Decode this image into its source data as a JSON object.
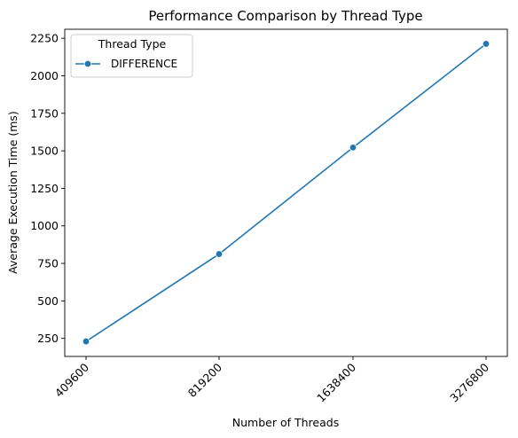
{
  "chart_data": {
    "type": "line",
    "title": "Performance Comparison by Thread Type",
    "xlabel": "Number of Threads",
    "ylabel": "Average Execution Time (ms)",
    "categories": [
      "409600",
      "819200",
      "1638400",
      "3276800"
    ],
    "ylim": [
      130,
      2310
    ],
    "yticks": [
      250,
      500,
      750,
      1000,
      1250,
      1500,
      1750,
      2000,
      2250
    ],
    "grid": false,
    "legend": {
      "title": "Thread Type",
      "position": "top-left"
    },
    "series": [
      {
        "name": "DIFFERENCE",
        "color": "#1f77b4",
        "marker": "circle",
        "values": [
          230,
          812,
          1522,
          2213
        ]
      }
    ]
  }
}
